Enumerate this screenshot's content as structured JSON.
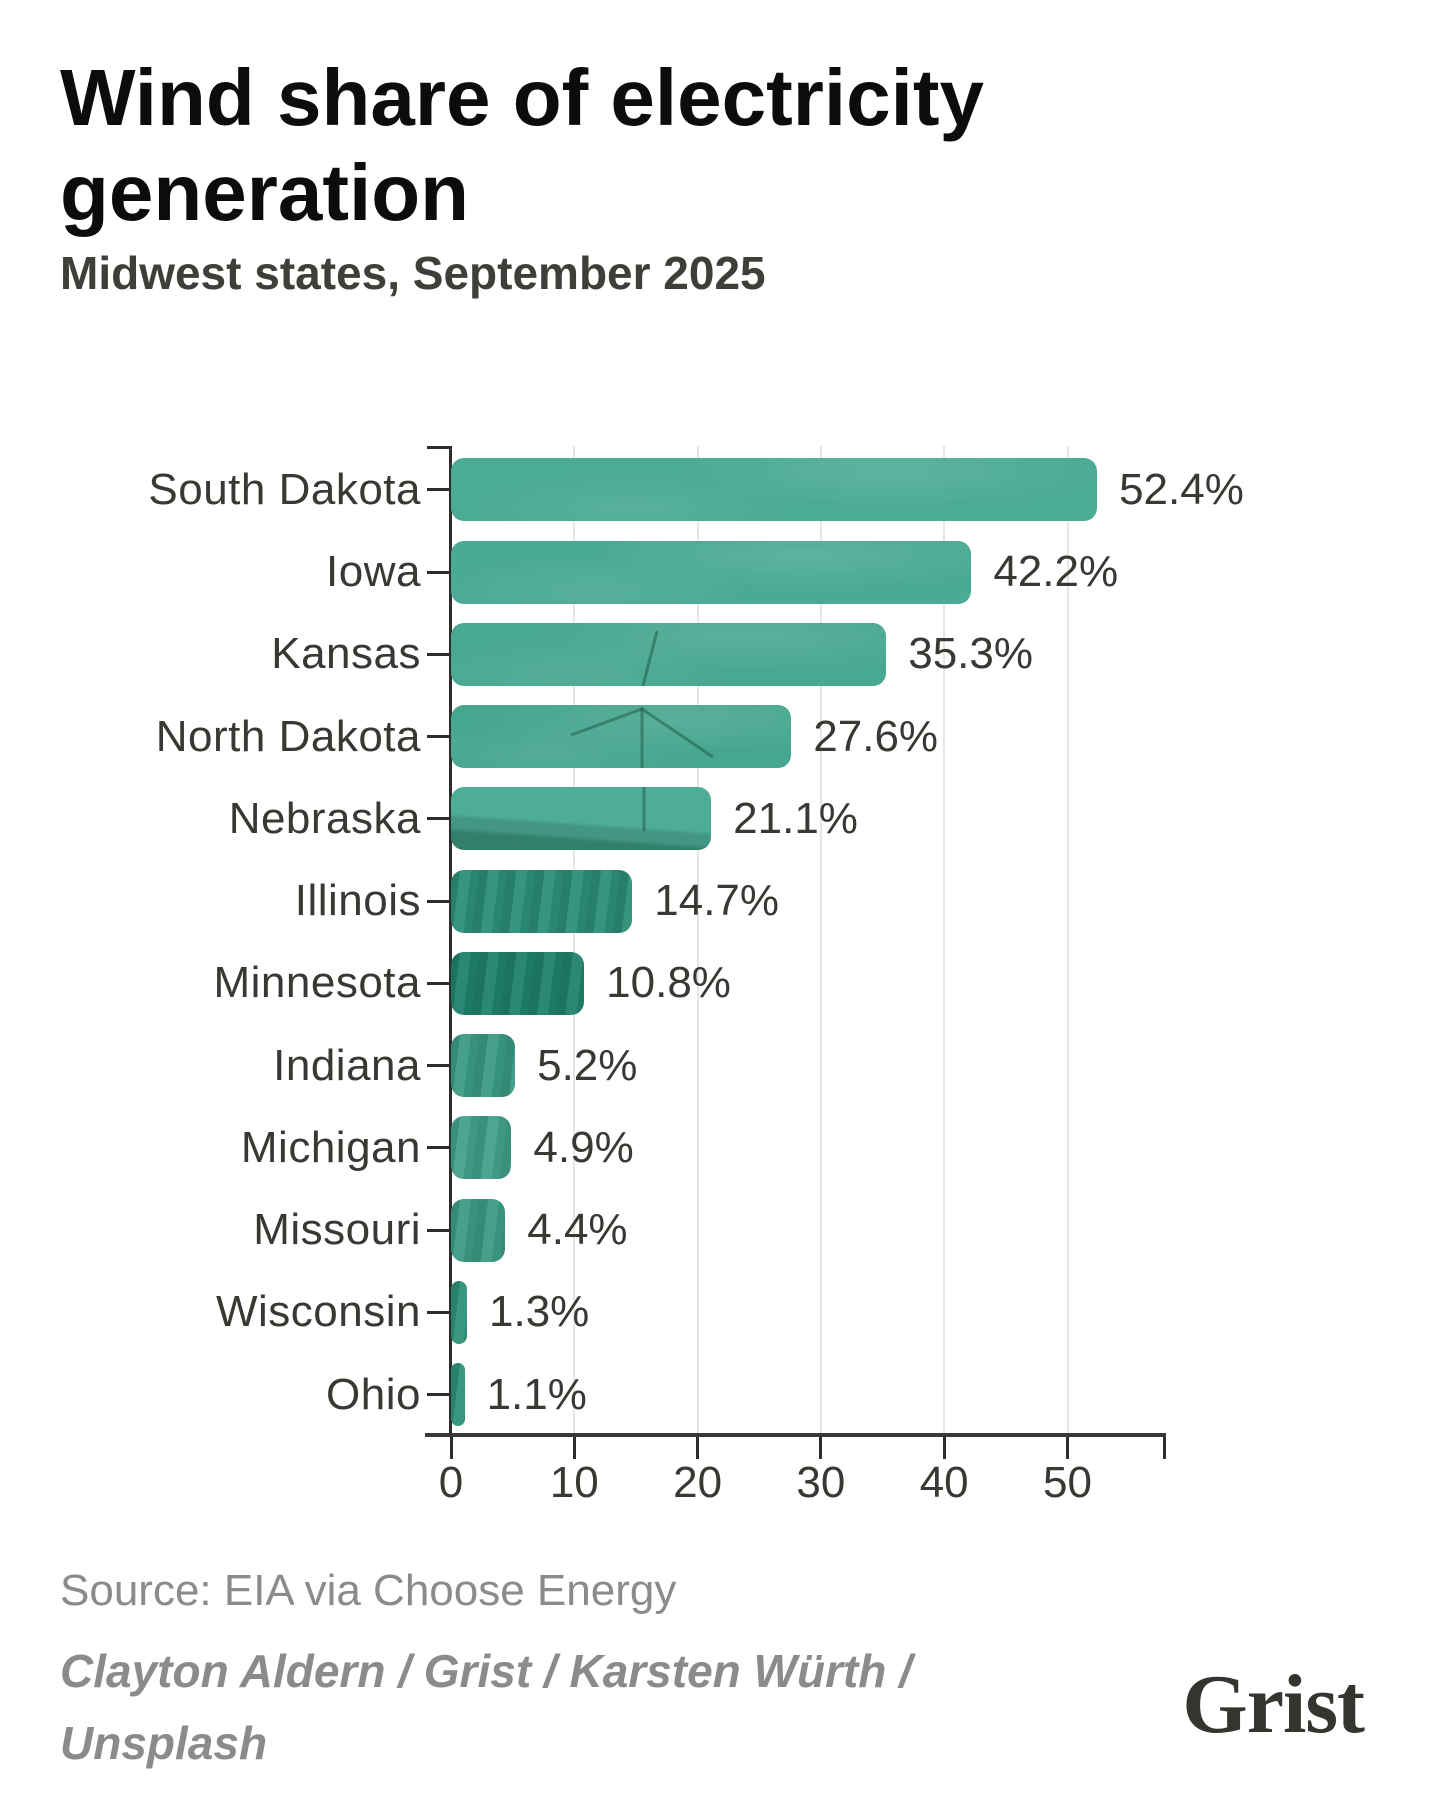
{
  "header": {
    "title_line1": "Wind share of electricity",
    "title_line2": "generation",
    "subtitle": "Midwest states, September 2025"
  },
  "chart_data": {
    "type": "bar",
    "orientation": "horizontal",
    "title": "Wind share of electricity generation",
    "subtitle": "Midwest states, September 2025",
    "categories": [
      "South Dakota",
      "Iowa",
      "Kansas",
      "North Dakota",
      "Nebraska",
      "Illinois",
      "Minnesota",
      "Indiana",
      "Michigan",
      "Missouri",
      "Wisconsin",
      "Ohio"
    ],
    "values": [
      52.4,
      42.2,
      35.3,
      27.6,
      21.1,
      14.7,
      10.8,
      5.2,
      4.9,
      4.4,
      1.3,
      1.1
    ],
    "value_labels": [
      "52.4%",
      "42.2%",
      "35.3%",
      "27.6%",
      "21.1%",
      "14.7%",
      "10.8%",
      "5.2%",
      "4.9%",
      "4.4%",
      "1.3%",
      "1.1%"
    ],
    "x_ticks": [
      0,
      10,
      20,
      30,
      40,
      50
    ],
    "xlim": [
      0,
      57.8
    ],
    "grid": "vertical-only",
    "legend": "none",
    "bar_colors": [
      "#4CAB95",
      "#4BAA93",
      "#49A891",
      "#47A68F",
      "#4FAC97",
      "#2B8D75",
      "#1F806B",
      "#3A9A82",
      "#41A089",
      "#3C9B83",
      "#2E9077",
      "#2E9077"
    ]
  },
  "footer": {
    "source": "Source: EIA via Choose Energy",
    "credit_line1": "Clayton Aldern / Grist / Karsten Würth /",
    "credit_line2": "Unsplash",
    "logo": "Grist"
  },
  "colors": {
    "background": "#FFFFFF",
    "bar_accent": "#4BA893",
    "axis": "#2E2D2B",
    "grid": "#E6E6E5",
    "text_dark": "#3A3833",
    "text_muted": "#8B8B8B",
    "title": "#0C0C0C",
    "logo": "#36342E"
  }
}
